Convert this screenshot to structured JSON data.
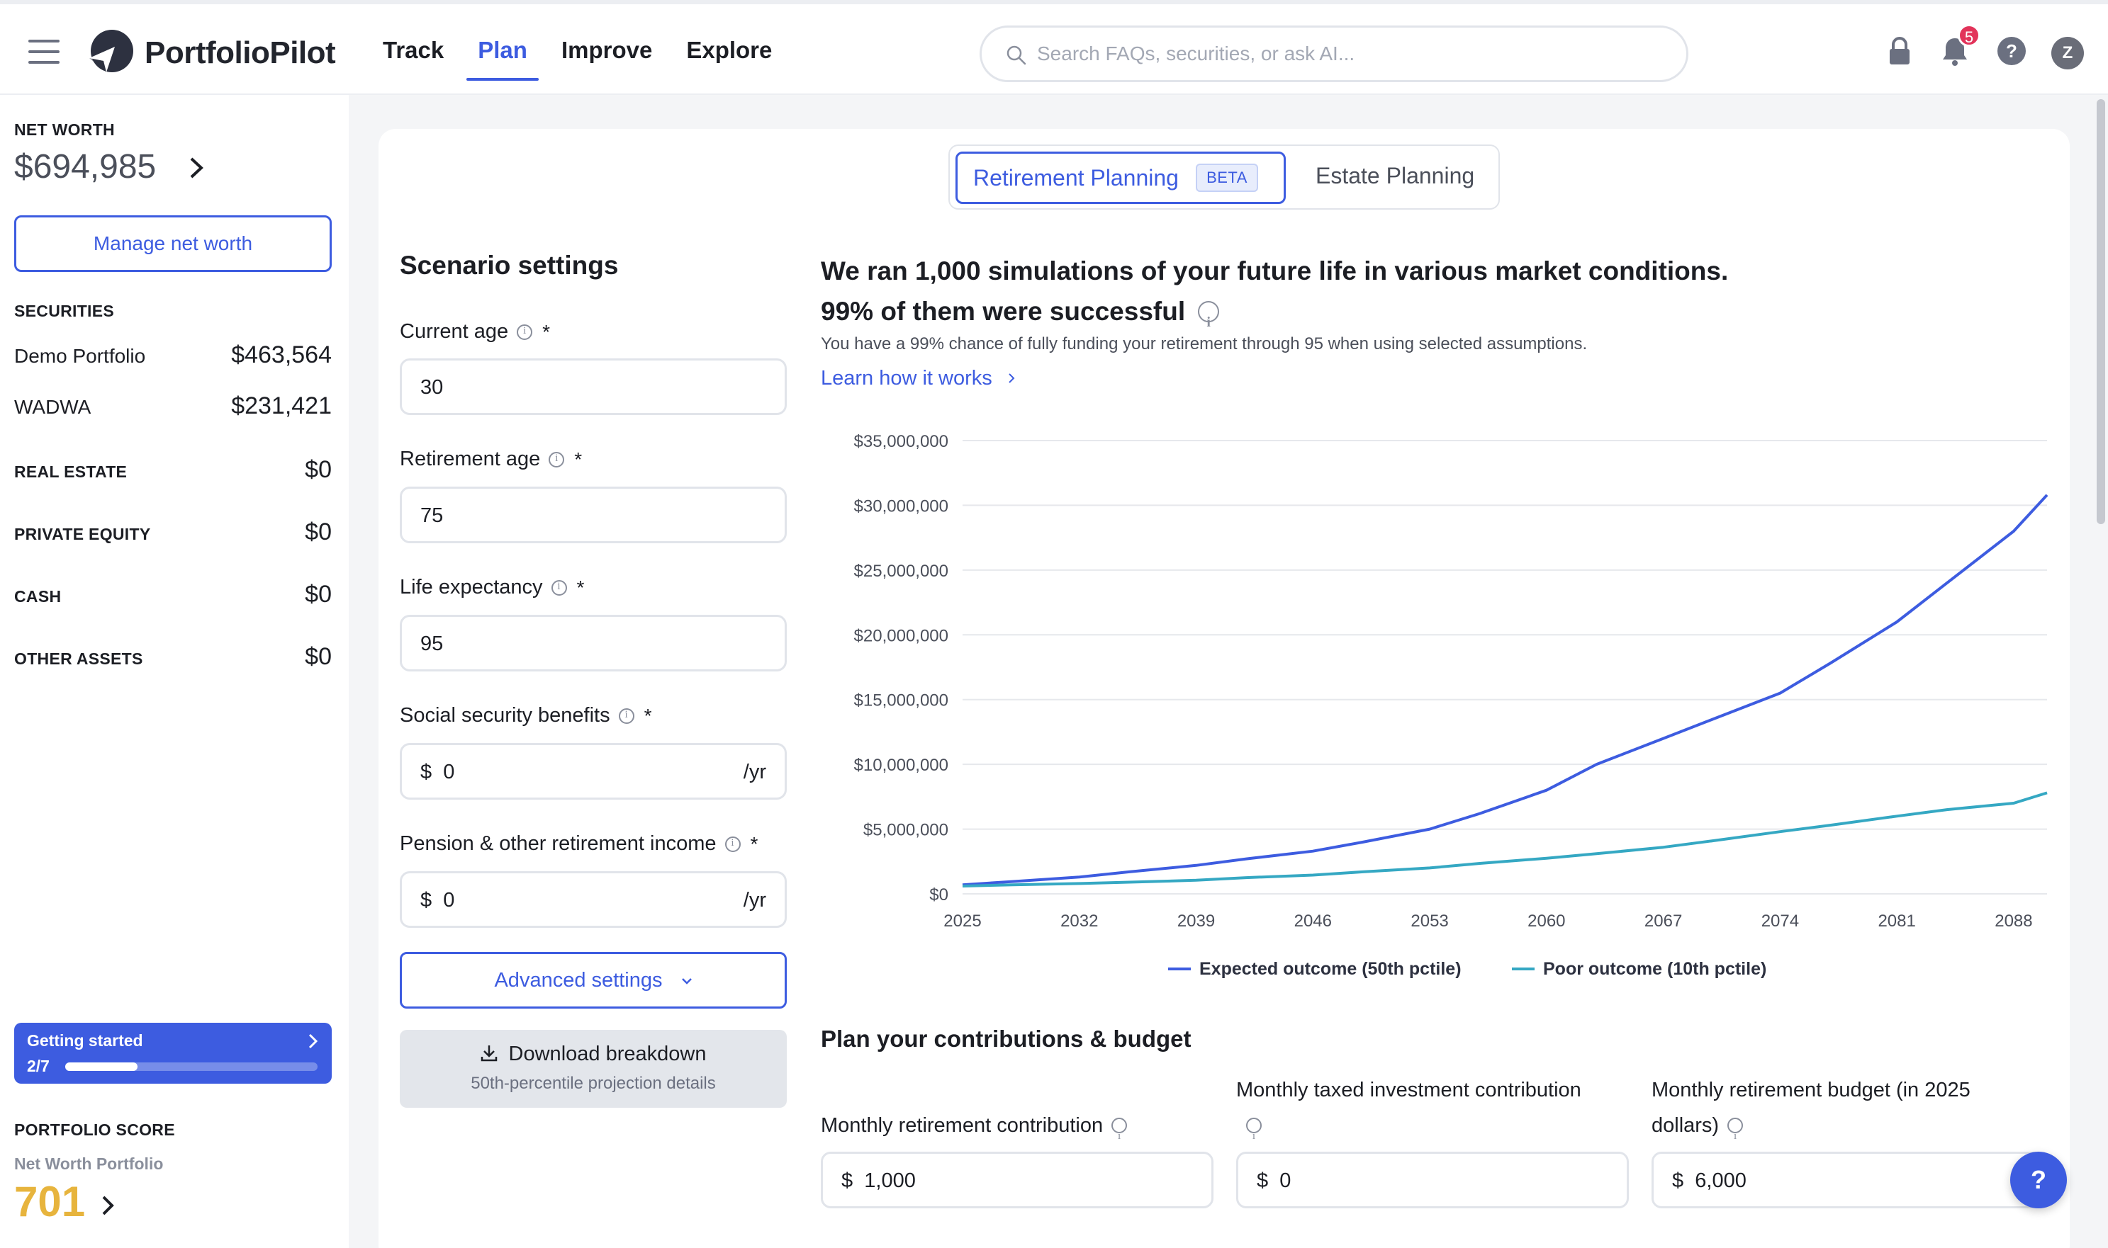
{
  "header": {
    "logo_text": "PortfolioPilot",
    "nav": [
      "Track",
      "Plan",
      "Improve",
      "Explore"
    ],
    "active_nav": "Plan",
    "search_placeholder": "Search FAQs, securities, or ask AI...",
    "notification_count": "5",
    "avatar_initial": "Z",
    "icons": [
      "menu-icon",
      "lock-icon",
      "bell-icon",
      "help-icon"
    ]
  },
  "sidebar": {
    "net_worth_label": "NET WORTH",
    "net_worth_value": "$694,985",
    "manage_button": "Manage net worth",
    "securities_label": "SECURITIES",
    "securities": [
      {
        "name": "Demo Portfolio",
        "value": "$463,564"
      },
      {
        "name": "WADWA",
        "value": "$231,421"
      }
    ],
    "categories": [
      {
        "name": "REAL ESTATE",
        "value": "$0"
      },
      {
        "name": "PRIVATE EQUITY",
        "value": "$0"
      },
      {
        "name": "CASH",
        "value": "$0"
      },
      {
        "name": "OTHER ASSETS",
        "value": "$0"
      }
    ],
    "getting_started": {
      "title": "Getting started",
      "progress_text": "2/7",
      "progress": 0.2857
    },
    "portfolio_score_label": "PORTFOLIO SCORE",
    "portfolio_score_sub": "Net Worth Portfolio",
    "portfolio_score_value": "701"
  },
  "tabs": {
    "retirement": "Retirement Planning",
    "beta": "BETA",
    "estate": "Estate Planning"
  },
  "scenario": {
    "title": "Scenario settings",
    "current_age_label": "Current age",
    "current_age": "30",
    "retirement_age_label": "Retirement age",
    "retirement_age": "75",
    "life_expectancy_label": "Life expectancy",
    "life_expectancy": "95",
    "social_security_label": "Social security benefits",
    "social_security": "0",
    "pension_label": "Pension & other retirement income",
    "pension": "0",
    "currency": "$",
    "per_year": "/yr",
    "required_mark": "*",
    "advanced_button": "Advanced settings",
    "download_title": "Download breakdown",
    "download_sub": "50th-percentile projection details"
  },
  "summary": {
    "headline_1": "We ran 1,000 simulations of your future life in various market conditions.",
    "headline_2": "99% of them were successful",
    "subtext": "You have a 99% chance of fully funding your retirement through 95 when using selected assumptions.",
    "learn_link": "Learn how it works"
  },
  "chart_data": {
    "type": "line",
    "x": [
      2025,
      2028,
      2032,
      2035,
      2039,
      2042,
      2046,
      2049,
      2053,
      2056,
      2060,
      2063,
      2067,
      2070,
      2074,
      2077,
      2081,
      2084,
      2088,
      2090
    ],
    "x_ticks": [
      "2025",
      "2032",
      "2039",
      "2046",
      "2053",
      "2060",
      "2067",
      "2074",
      "2081",
      "2088"
    ],
    "y_ticks": [
      "$0",
      "$5,000,000",
      "$10,000,000",
      "$15,000,000",
      "$20,000,000",
      "$25,000,000",
      "$30,000,000",
      "$35,000,000"
    ],
    "ylim": [
      0,
      35000000
    ],
    "xlim": [
      2025,
      2090
    ],
    "grid": true,
    "legend_position": "bottom-center",
    "series": [
      {
        "name": "Expected outcome (50th pctile)",
        "color": "#3d5ce0",
        "values": [
          700000,
          950000,
          1300000,
          1700000,
          2200000,
          2700000,
          3300000,
          4000000,
          5000000,
          6200000,
          8000000,
          10000000,
          12000000,
          13500000,
          15500000,
          17800000,
          21000000,
          24000000,
          28000000,
          30800000
        ]
      },
      {
        "name": "Poor outcome (10th pctile)",
        "color": "#35a8c3",
        "values": [
          600000,
          700000,
          800000,
          900000,
          1050000,
          1250000,
          1450000,
          1700000,
          2000000,
          2350000,
          2750000,
          3100000,
          3600000,
          4100000,
          4800000,
          5300000,
          6000000,
          6500000,
          7000000,
          7800000
        ]
      }
    ]
  },
  "contributions": {
    "title": "Plan your contributions & budget",
    "monthly_retirement_label": "Monthly retirement contribution",
    "monthly_retirement": "1,000",
    "taxed_investment_label": "Monthly taxed investment contribution",
    "taxed_investment": "0",
    "budget_label": "Monthly retirement budget (in 2025 dollars)",
    "budget": "6,000",
    "currency": "$"
  },
  "help_fab": "?"
}
